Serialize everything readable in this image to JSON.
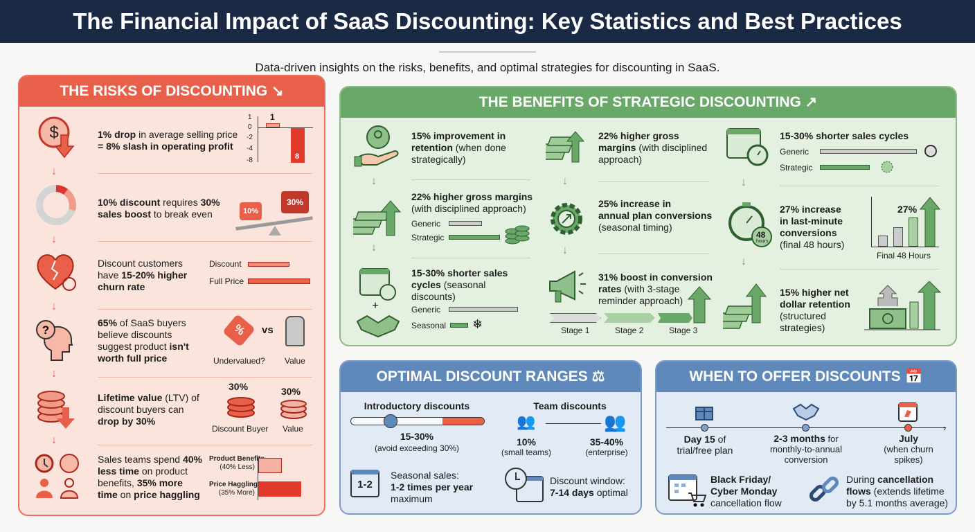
{
  "title": "The Financial Impact of SaaS Discounting: Key Statistics and Best Practices",
  "subtitle": "Data-driven insights on the risks, benefits, and optimal strategies for discounting in SaaS.",
  "colors": {
    "header": "#1b2a44",
    "risk": "#e8604a",
    "benefit": "#6aa86a",
    "info": "#5f88bb"
  },
  "risks": {
    "heading": "THE RISKS OF DISCOUNTING",
    "heading_icon": "arrow-down-right-icon",
    "items": [
      {
        "icon": "dollar-down-icon",
        "parts": [
          "1% drop",
          " in average selling price",
          "= 8% slash in operating profit"
        ],
        "chart": {
          "ticks": [
            "1",
            "0",
            "-2",
            "-4",
            "-8"
          ],
          "bar_labels": [
            "1",
            "8"
          ],
          "values": [
            1,
            -8
          ]
        }
      },
      {
        "icon": "donut-icon",
        "parts": [
          "10% discount",
          " requires ",
          "30%",
          "sales boost",
          " to break even"
        ],
        "weights": [
          "10%",
          "30%"
        ]
      },
      {
        "icon": "broken-heart-icon",
        "parts": [
          "Discount customers",
          "have ",
          "15-20% higher",
          "churn rate"
        ],
        "labels": [
          "Discount",
          "Full Price"
        ]
      },
      {
        "icon": "head-question-icon",
        "parts": [
          "65%",
          " of SaaS buyers",
          "believe discounts",
          "suggest product ",
          "isn't",
          "worth full price"
        ],
        "labels": [
          "Undervalued?",
          "vs",
          "Value"
        ]
      },
      {
        "icon": "coins-down-icon",
        "parts": [
          "Lifetime value",
          " (LTV) of",
          "discount buyers can",
          "drop by 30%"
        ],
        "stacks": [
          {
            "value": "30%",
            "label": "Discount Buyer"
          },
          {
            "value": "30%",
            "label": "Value"
          }
        ]
      },
      {
        "icon": "sales-team-icon",
        "parts": [
          "Sales teams spend ",
          "40%",
          "less time",
          " on product",
          "benefits, ",
          "35% more",
          "time",
          " on ",
          "price haggling"
        ],
        "bars": [
          {
            "label": "Product Benefits",
            "sub": "(40% Less)"
          },
          {
            "label": "Price Haggling",
            "sub": "(35% More)"
          }
        ]
      }
    ]
  },
  "benefits": {
    "heading": "THE BENEFITS OF STRATEGIC DISCOUNTING",
    "heading_icon": "arrow-up-right-icon",
    "items": [
      {
        "icon": "hand-user-icon",
        "parts": [
          "15% improvement in",
          "retention",
          " (when done",
          "strategically)"
        ]
      },
      {
        "icon": "cash-up-icon",
        "parts": [
          "22% higher gross margins",
          "(with disciplined approach)"
        ],
        "labels": [
          "Generic",
          "Strategic"
        ]
      },
      {
        "icon": "calendar-handshake-icon",
        "parts": [
          "15-30% shorter sales",
          "cycles",
          " (seasonal",
          "discounts)"
        ],
        "labels": [
          "Generic",
          "Seasonal"
        ]
      },
      {
        "icon": "cash-up-icon",
        "parts": [
          "22% higher gross",
          "margins",
          " (with disciplined",
          "approach)"
        ]
      },
      {
        "icon": "gear-arrow-icon",
        "parts": [
          "25% increase in",
          "annual plan conversions",
          "(seasonal timing)"
        ]
      },
      {
        "icon": "megaphone-icon",
        "parts": [
          "31% boost in conversion",
          "rates",
          " (with 3-stage",
          "reminder approach)"
        ],
        "stages": [
          "Stage 1",
          "Stage 2",
          "Stage 3"
        ]
      },
      {
        "icon": "calendar-stopwatch-icon",
        "parts": [
          "15-30% shorter sales cycles"
        ],
        "labels": [
          "Generic",
          "Strategic"
        ]
      },
      {
        "icon": "stopwatch-48-icon",
        "parts": [
          "27% increase",
          "in last-minute",
          "conversions",
          "(final 48 hours)"
        ],
        "badge": "48",
        "badge_sub": "hours",
        "chart_value": "27%",
        "chart_label": "Final 48 Hours"
      },
      {
        "icon": "cash-up-icon",
        "parts": [
          "15% higher net",
          "dollar retention",
          "(structured",
          "strategies)"
        ]
      }
    ]
  },
  "ranges": {
    "heading": "OPTIMAL DISCOUNT RANGES",
    "heading_icon": "scales-icon",
    "intro": {
      "title": "Introductory discounts",
      "value": "15-30%",
      "note": "(avoid exceeding 30%)"
    },
    "team": {
      "title": "Team discounts",
      "low": "10%",
      "low_note": "(small teams)",
      "high": "35-40%",
      "high_note": "(enterprise)"
    },
    "seasonal": {
      "badge": "1-2",
      "line1": "Seasonal sales:",
      "bold": "1-2 times per year",
      "line3": "maximum"
    },
    "window": {
      "line1": "Discount window:",
      "bold": "7-14 days",
      "rest": " optimal"
    }
  },
  "when": {
    "heading": "WHEN TO OFFER DISCOUNTS",
    "heading_icon": "calendar-clock-icon",
    "timeline": [
      {
        "icon": "gift-icon",
        "bold": "Day 15",
        "rest": " of",
        "line2": "trial/free plan"
      },
      {
        "icon": "handshake-icon",
        "bold": "2-3 months",
        "rest": " for",
        "line2": "monthly-to-annual",
        "line3": "conversion"
      },
      {
        "icon": "calendar-alert-icon",
        "bold": "July",
        "line2": "(when churn",
        "line3": "spikes)"
      }
    ],
    "bf": {
      "bold1": "Black Friday/",
      "bold2": "Cyber Monday",
      "line3": "cancellation flow"
    },
    "cancel": {
      "pre": "During ",
      "bold1": "cancellation",
      "bold2": "flows",
      "rest": " (extends lifetime",
      "line3": "by 5.1 months average)"
    }
  }
}
